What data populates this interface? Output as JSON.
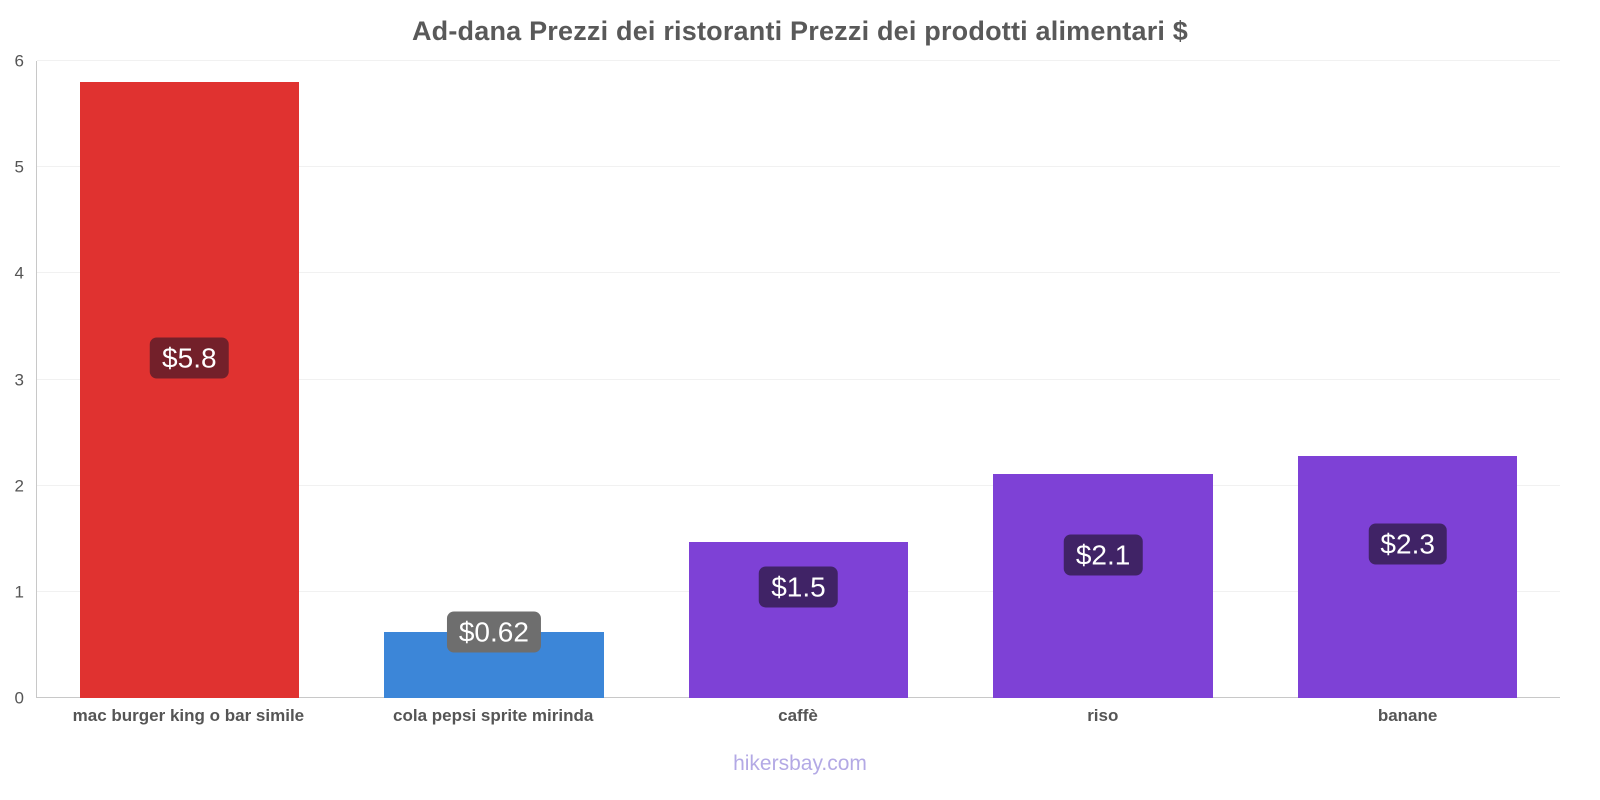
{
  "header": {
    "title": "Ad-dana Prezzi dei ristoranti Prezzi dei prodotti alimentari $"
  },
  "footer": {
    "text": "hikersbay.com"
  },
  "chart_data": {
    "type": "bar",
    "title": "Ad-dana Prezzi dei ristoranti Prezzi dei prodotti alimentari $",
    "categories": [
      "mac burger king o bar simile",
      "cola pepsi sprite mirinda",
      "caffè",
      "riso",
      "banane"
    ],
    "values": [
      5.8,
      0.62,
      1.47,
      2.11,
      2.28
    ],
    "value_labels": [
      "$5.8",
      "$0.62",
      "$1.5",
      "$2.1",
      "$2.3"
    ],
    "bar_colors": [
      "#e03230",
      "#3c86d8",
      "#7e41d6",
      "#7e41d6",
      "#7e41d6"
    ],
    "label_bg_colors": [
      "#73202a",
      "#6e6e6e",
      "#402366",
      "#402366",
      "#402366"
    ],
    "label_positions": [
      3.2,
      0.62,
      1.05,
      1.35,
      1.45
    ],
    "xlabel": "",
    "ylabel": "",
    "ylim": [
      0,
      6
    ],
    "yticks": [
      0,
      1,
      2,
      3,
      4,
      5,
      6
    ],
    "grid": true,
    "legend": false,
    "watermark": "hikersbay.com"
  }
}
